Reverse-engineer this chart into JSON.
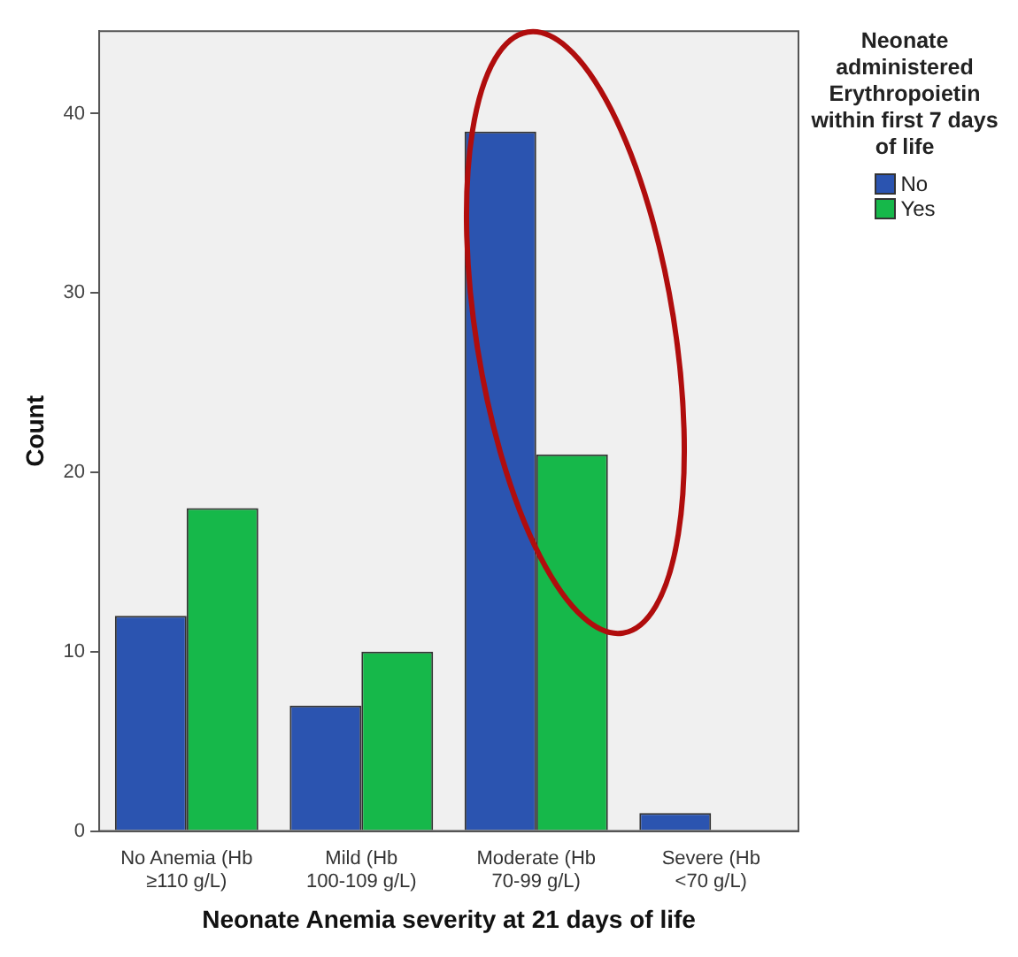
{
  "chart_data": {
    "type": "bar",
    "xlabel": "Neonate Anemia severity at 21 days of life",
    "ylabel": "Count",
    "legend_title": "Neonate administered Erythropoietin within first 7 days of life",
    "categories": [
      "No Anemia (Hb ≥110 g/L)",
      "Mild (Hb 100-109 g/L)",
      "Moderate (Hb 70-99 g/L)",
      "Severe (Hb <70 g/L)"
    ],
    "series": [
      {
        "name": "No",
        "color": "#2b54b0",
        "values": [
          12,
          7,
          39,
          1
        ]
      },
      {
        "name": "Yes",
        "color": "#16b84a",
        "values": [
          18,
          10,
          21,
          0
        ]
      }
    ],
    "ylim": [
      0,
      44.6
    ],
    "yticks": [
      0,
      10,
      20,
      30,
      40
    ],
    "grid": false,
    "legend": "right"
  }
}
